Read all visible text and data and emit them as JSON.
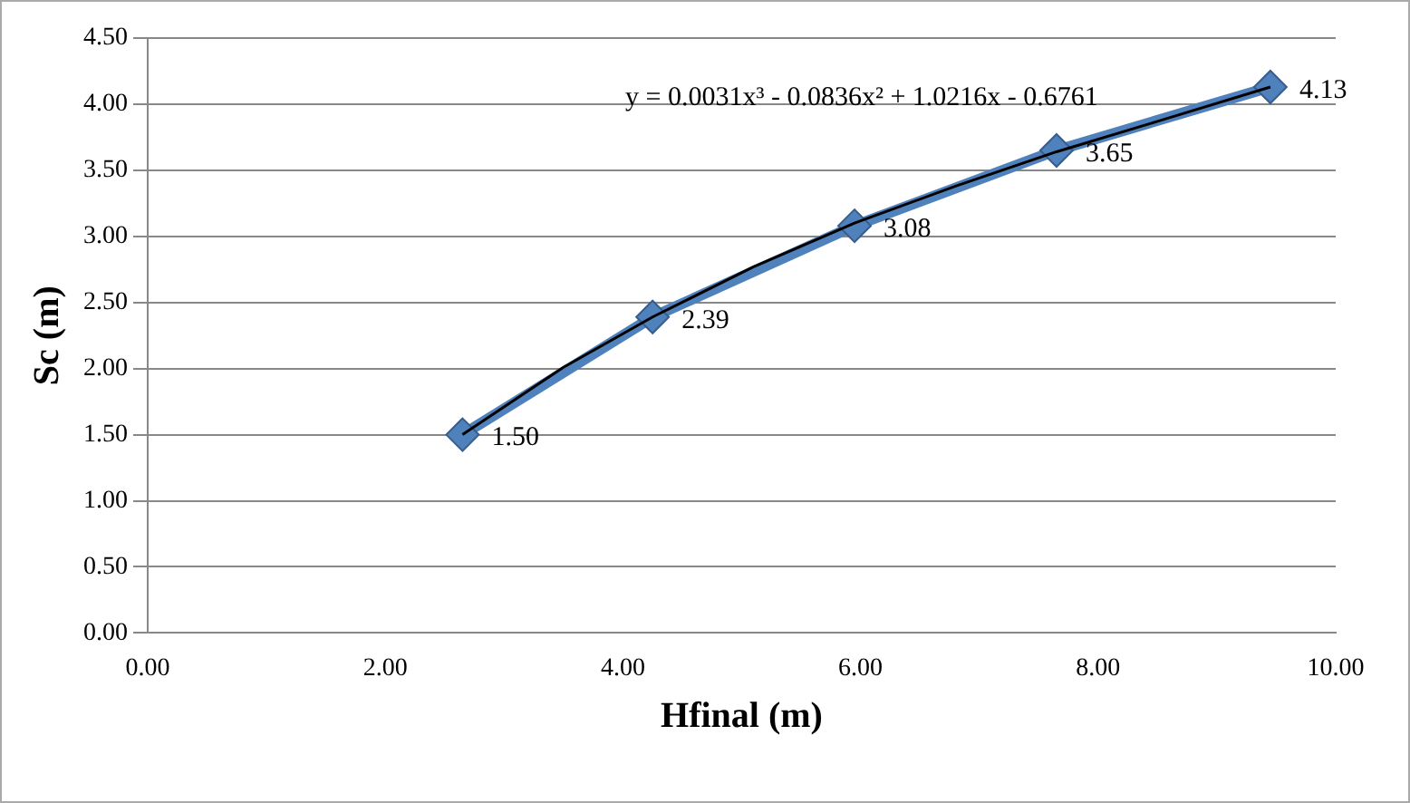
{
  "chart_data": {
    "type": "line",
    "xlabel": "Hfinal (m)",
    "ylabel": "Sc (m)",
    "xlim": [
      0,
      10
    ],
    "xticks": [
      {
        "value": 0,
        "label": "0.00"
      },
      {
        "value": 2,
        "label": "2.00"
      },
      {
        "value": 4,
        "label": "4.00"
      },
      {
        "value": 6,
        "label": "6.00"
      },
      {
        "value": 8,
        "label": "8.00"
      },
      {
        "value": 10,
        "label": "10.00"
      }
    ],
    "ylim": [
      0,
      4.5
    ],
    "yticks": [
      {
        "value": 0,
        "label": "0.00"
      },
      {
        "value": 0.5,
        "label": "0.50"
      },
      {
        "value": 1,
        "label": "1.00"
      },
      {
        "value": 1.5,
        "label": "1.50"
      },
      {
        "value": 2,
        "label": "2.00"
      },
      {
        "value": 2.5,
        "label": "2.50"
      },
      {
        "value": 3,
        "label": "3.00"
      },
      {
        "value": 3.5,
        "label": "3.50"
      },
      {
        "value": 4,
        "label": "4.00"
      },
      {
        "value": 4.5,
        "label": "4.50"
      }
    ],
    "grid": "y",
    "legend": false,
    "series": [
      {
        "color": "#4f81bd",
        "marker": "diamond",
        "x": [
          2.65,
          4.25,
          5.95,
          7.65,
          9.45
        ],
        "values": [
          1.5,
          2.39,
          3.08,
          3.65,
          4.13
        ],
        "value_labels": [
          "1.50",
          "2.39",
          "3.08",
          "3.65",
          "4.13"
        ]
      },
      {
        "color": "#000000",
        "marker": "none",
        "x": [
          2.65,
          3.5,
          4.25,
          5.1,
          5.95,
          6.8,
          7.65,
          8.5,
          9.45
        ],
        "values": [
          1.5,
          2.01,
          2.39,
          2.77,
          3.1,
          3.38,
          3.64,
          3.87,
          4.13
        ]
      }
    ],
    "annotations": [
      "y = 0.0031x³ - 0.0836x² + 1.0216x - 0.6761"
    ]
  }
}
